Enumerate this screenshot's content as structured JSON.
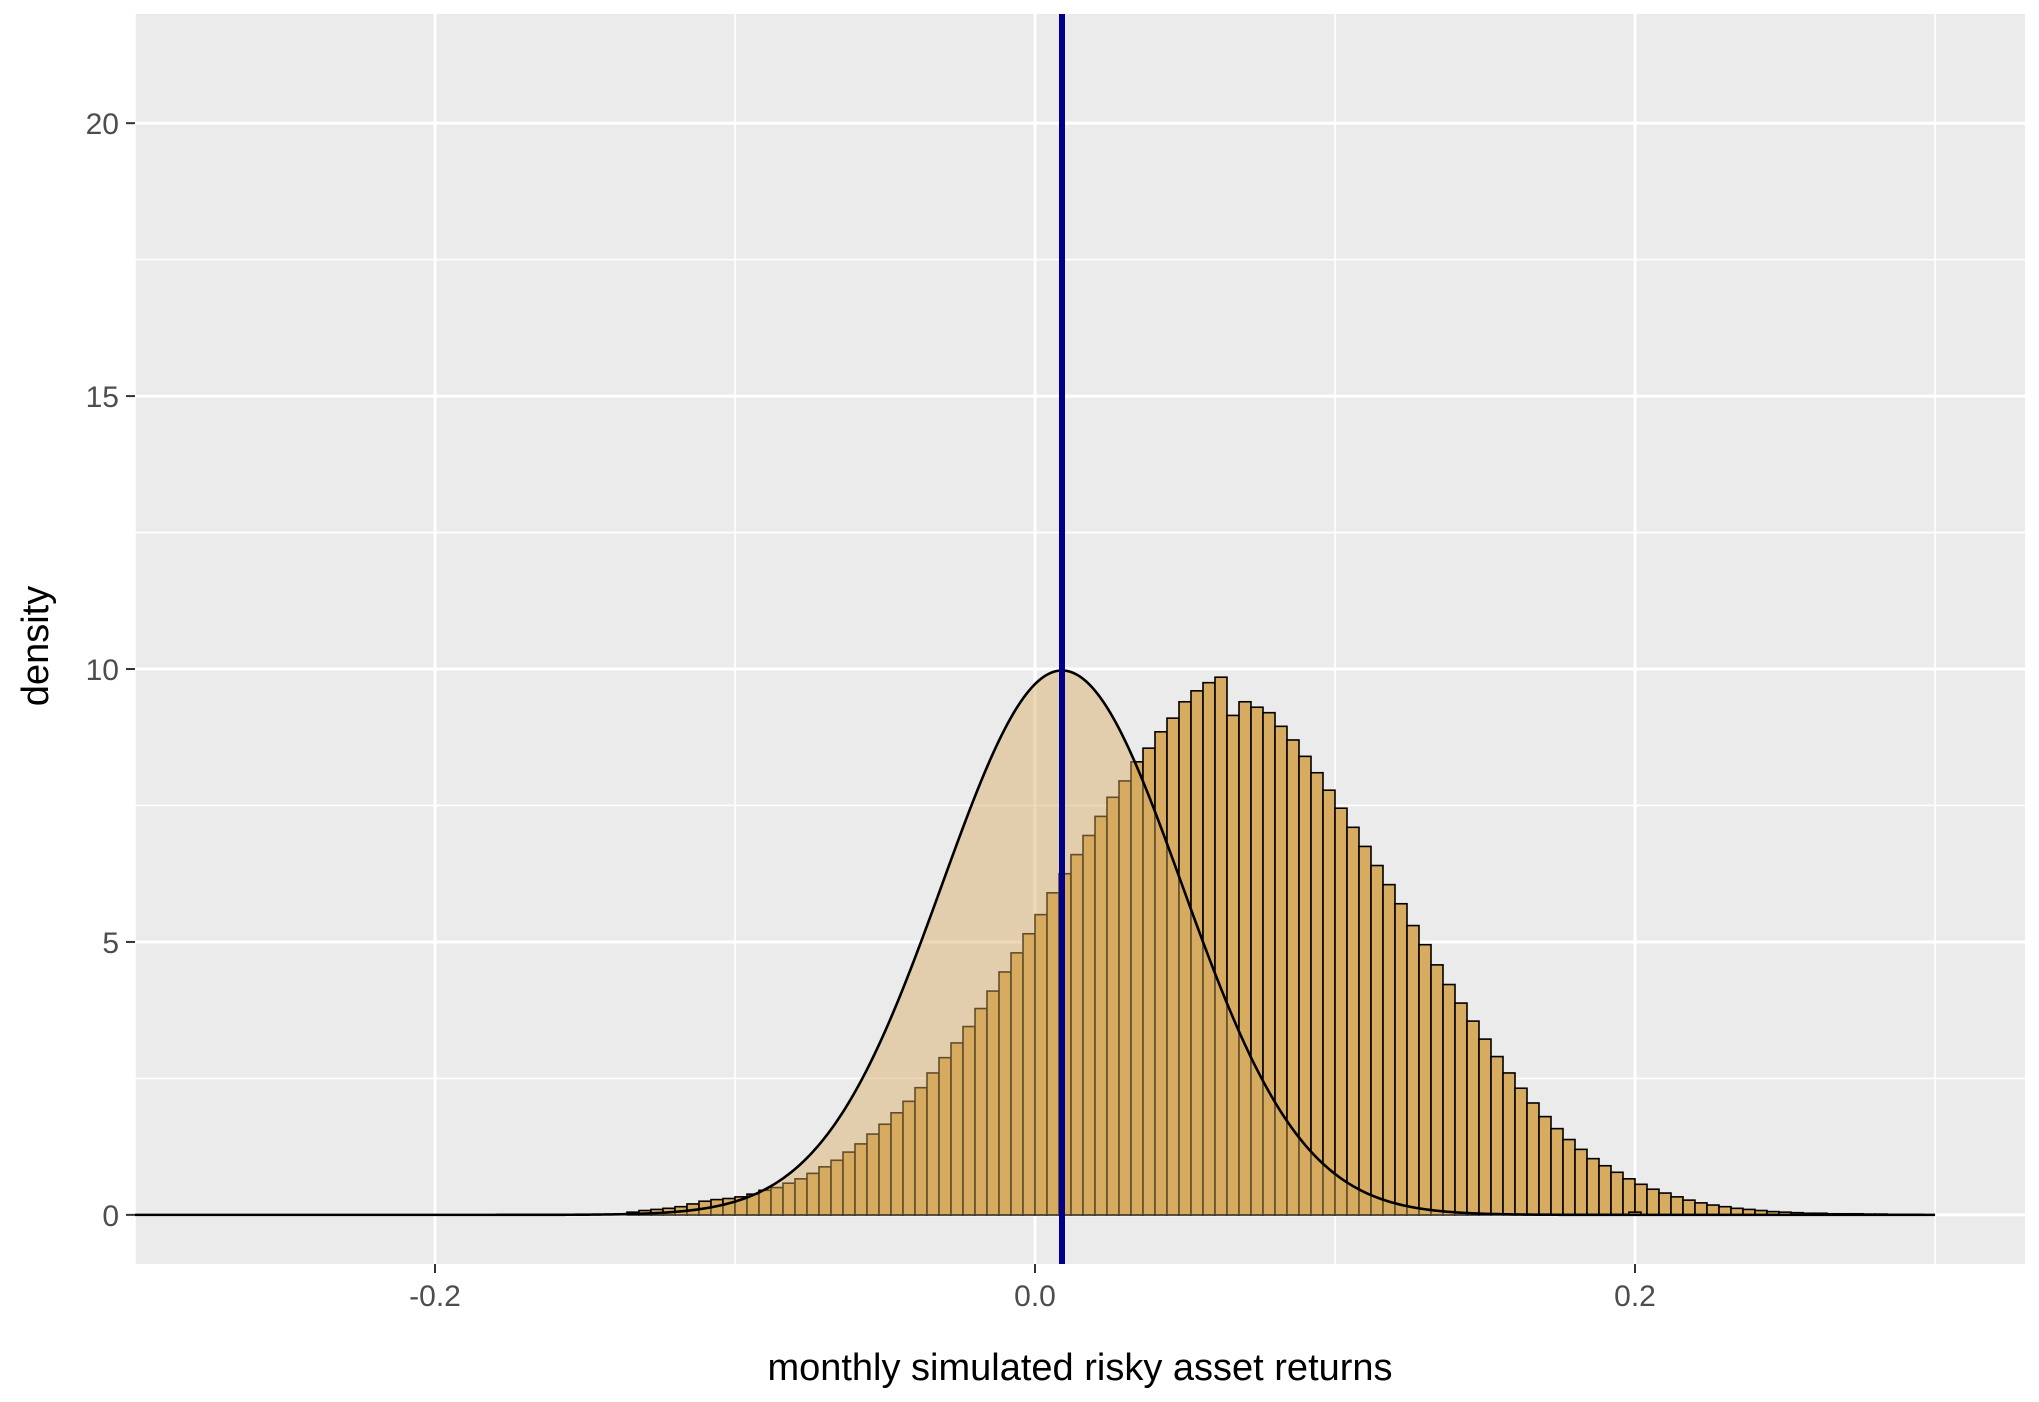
{
  "chart_data": {
    "type": "histogram",
    "xlabel": "monthly simulated risky asset returns",
    "ylabel": "density",
    "xlim": [
      -0.3,
      0.33
    ],
    "ylim": [
      -0.9,
      22
    ],
    "x_major_ticks": [
      -0.2,
      0.0,
      0.2
    ],
    "x_tick_labels": [
      "-0.2",
      "0.0",
      "0.2"
    ],
    "x_minor_ticks": [
      -0.3,
      -0.1,
      0.1,
      0.3
    ],
    "y_major_ticks": [
      0,
      5,
      10,
      15,
      20
    ],
    "y_tick_labels": [
      "0",
      "5",
      "10",
      "15",
      "20"
    ],
    "y_minor_ticks": [
      2.5,
      7.5,
      12.5,
      17.5
    ],
    "grid": true,
    "panel_background": "#ebebeb",
    "bar_fill": "#d7ab60",
    "bar_outline": "#000000",
    "vline_color": "#00008b",
    "vline_x": 0.009,
    "density_mean": 0.009,
    "density_sd": 0.04,
    "density_x_range": [
      -0.3,
      0.3
    ],
    "bin_width": 0.004,
    "bins_start": -0.136,
    "bin_density": [
      0.05,
      0.08,
      0.1,
      0.12,
      0.15,
      0.2,
      0.25,
      0.28,
      0.3,
      0.33,
      0.38,
      0.45,
      0.5,
      0.58,
      0.66,
      0.76,
      0.88,
      1.0,
      1.15,
      1.3,
      1.48,
      1.66,
      1.87,
      2.08,
      2.33,
      2.6,
      2.88,
      3.15,
      3.45,
      3.78,
      4.1,
      4.45,
      4.8,
      5.15,
      5.5,
      5.9,
      6.25,
      6.6,
      6.95,
      7.3,
      7.65,
      7.95,
      8.3,
      8.55,
      8.85,
      9.1,
      9.4,
      9.6,
      9.75,
      9.85,
      9.15,
      9.4,
      9.3,
      9.2,
      8.95,
      8.7,
      8.4,
      8.1,
      7.78,
      7.45,
      7.1,
      6.75,
      6.4,
      6.05,
      5.7,
      5.3,
      4.95,
      4.58,
      4.22,
      3.88,
      3.55,
      3.22,
      2.9,
      2.6,
      2.32,
      2.05,
      1.8,
      1.58,
      1.38,
      1.2,
      1.03,
      0.9,
      0.78,
      0.66,
      0.56,
      0.47,
      0.4,
      0.33,
      0.27,
      0.22,
      0.18,
      0.15,
      0.12,
      0.1,
      0.08,
      0.06,
      0.05,
      0.04,
      0.03,
      0.03,
      0.02,
      0.02,
      0.02,
      0.015,
      0.015,
      0.01,
      0.01,
      0.01
    ],
    "outlier_bins": [
      {
        "x0": 0.198,
        "x1": 0.202,
        "density": 0.05
      }
    ]
  }
}
